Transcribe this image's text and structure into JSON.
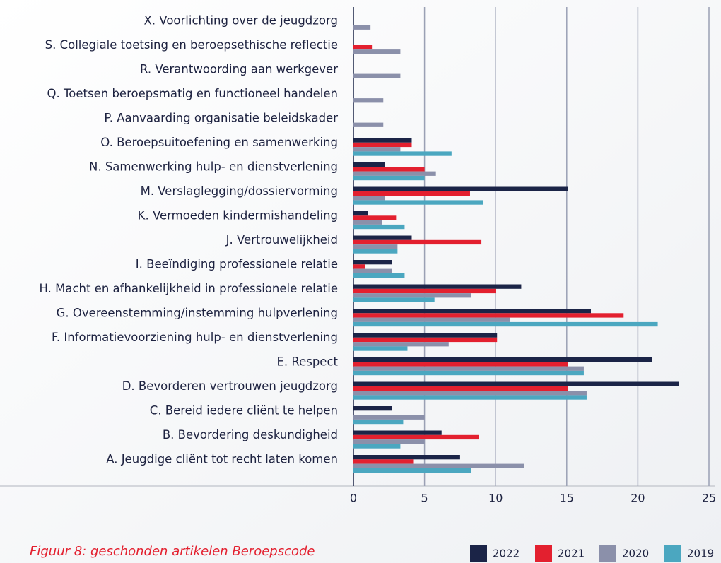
{
  "chart_data": {
    "type": "bar",
    "title": "Figuur 8: geschonden artikelen Beroepscode",
    "categories": [
      "X. Voorlichting over de jeugdzorg",
      "S. Collegiale toetsing en beroepsethische reflectie",
      "R. Verantwoording aan werkgever",
      "Q. Toetsen beroepsmatig en functioneel handelen",
      "P. Aanvaarding organisatie beleidskader",
      "O. Beroepsuitoefening en samenwerking",
      "N. Samenwerking hulp- en dienstverlening",
      "M. Verslaglegging/dossiervorming",
      "K. Vermoeden kindermishandeling",
      "J. Vertrouwelijkheid",
      "I. Beeïndiging professionele relatie",
      "H. Macht en afhankelijkheid in professionele relatie",
      "G. Overeenstemming/instemming hulpverlening",
      "F. Informatievoorziening hulp- en dienstverlening",
      "E. Respect",
      "D. Bevorderen vertrouwen jeugdzorg",
      "C. Bereid iedere cliënt te helpen",
      "B. Bevordering deskundigheid",
      "A. Jeugdige cliënt tot recht laten komen"
    ],
    "series": [
      {
        "name": "2022",
        "color": "#1b2447",
        "values": [
          0,
          0,
          0,
          0,
          0,
          4.1,
          2.2,
          15.1,
          1.0,
          4.1,
          2.7,
          11.8,
          16.7,
          10.1,
          21.0,
          22.9,
          2.7,
          6.2,
          7.5
        ]
      },
      {
        "name": "2021",
        "color": "#e3202f",
        "values": [
          0,
          1.3,
          0,
          0,
          0,
          4.1,
          5.0,
          8.2,
          3.0,
          9.0,
          0.8,
          10.0,
          19.0,
          10.1,
          15.1,
          15.1,
          0,
          8.8,
          4.2
        ]
      },
      {
        "name": "2020",
        "color": "#8b90aa",
        "values": [
          1.2,
          3.3,
          3.3,
          2.1,
          2.1,
          3.3,
          5.8,
          2.2,
          2.0,
          3.1,
          2.7,
          8.3,
          11.0,
          6.7,
          16.2,
          16.4,
          5.0,
          5.0,
          12.0
        ]
      },
      {
        "name": "2019",
        "color": "#4ba7c0",
        "values": [
          0,
          0,
          0,
          0,
          0,
          6.9,
          5.0,
          9.1,
          3.6,
          3.1,
          3.6,
          5.7,
          21.4,
          3.8,
          16.2,
          16.4,
          3.5,
          3.3,
          8.3
        ]
      }
    ],
    "xlim": [
      0,
      25
    ],
    "xticks": [
      0,
      5,
      10,
      15,
      20,
      25
    ],
    "grid": true
  }
}
